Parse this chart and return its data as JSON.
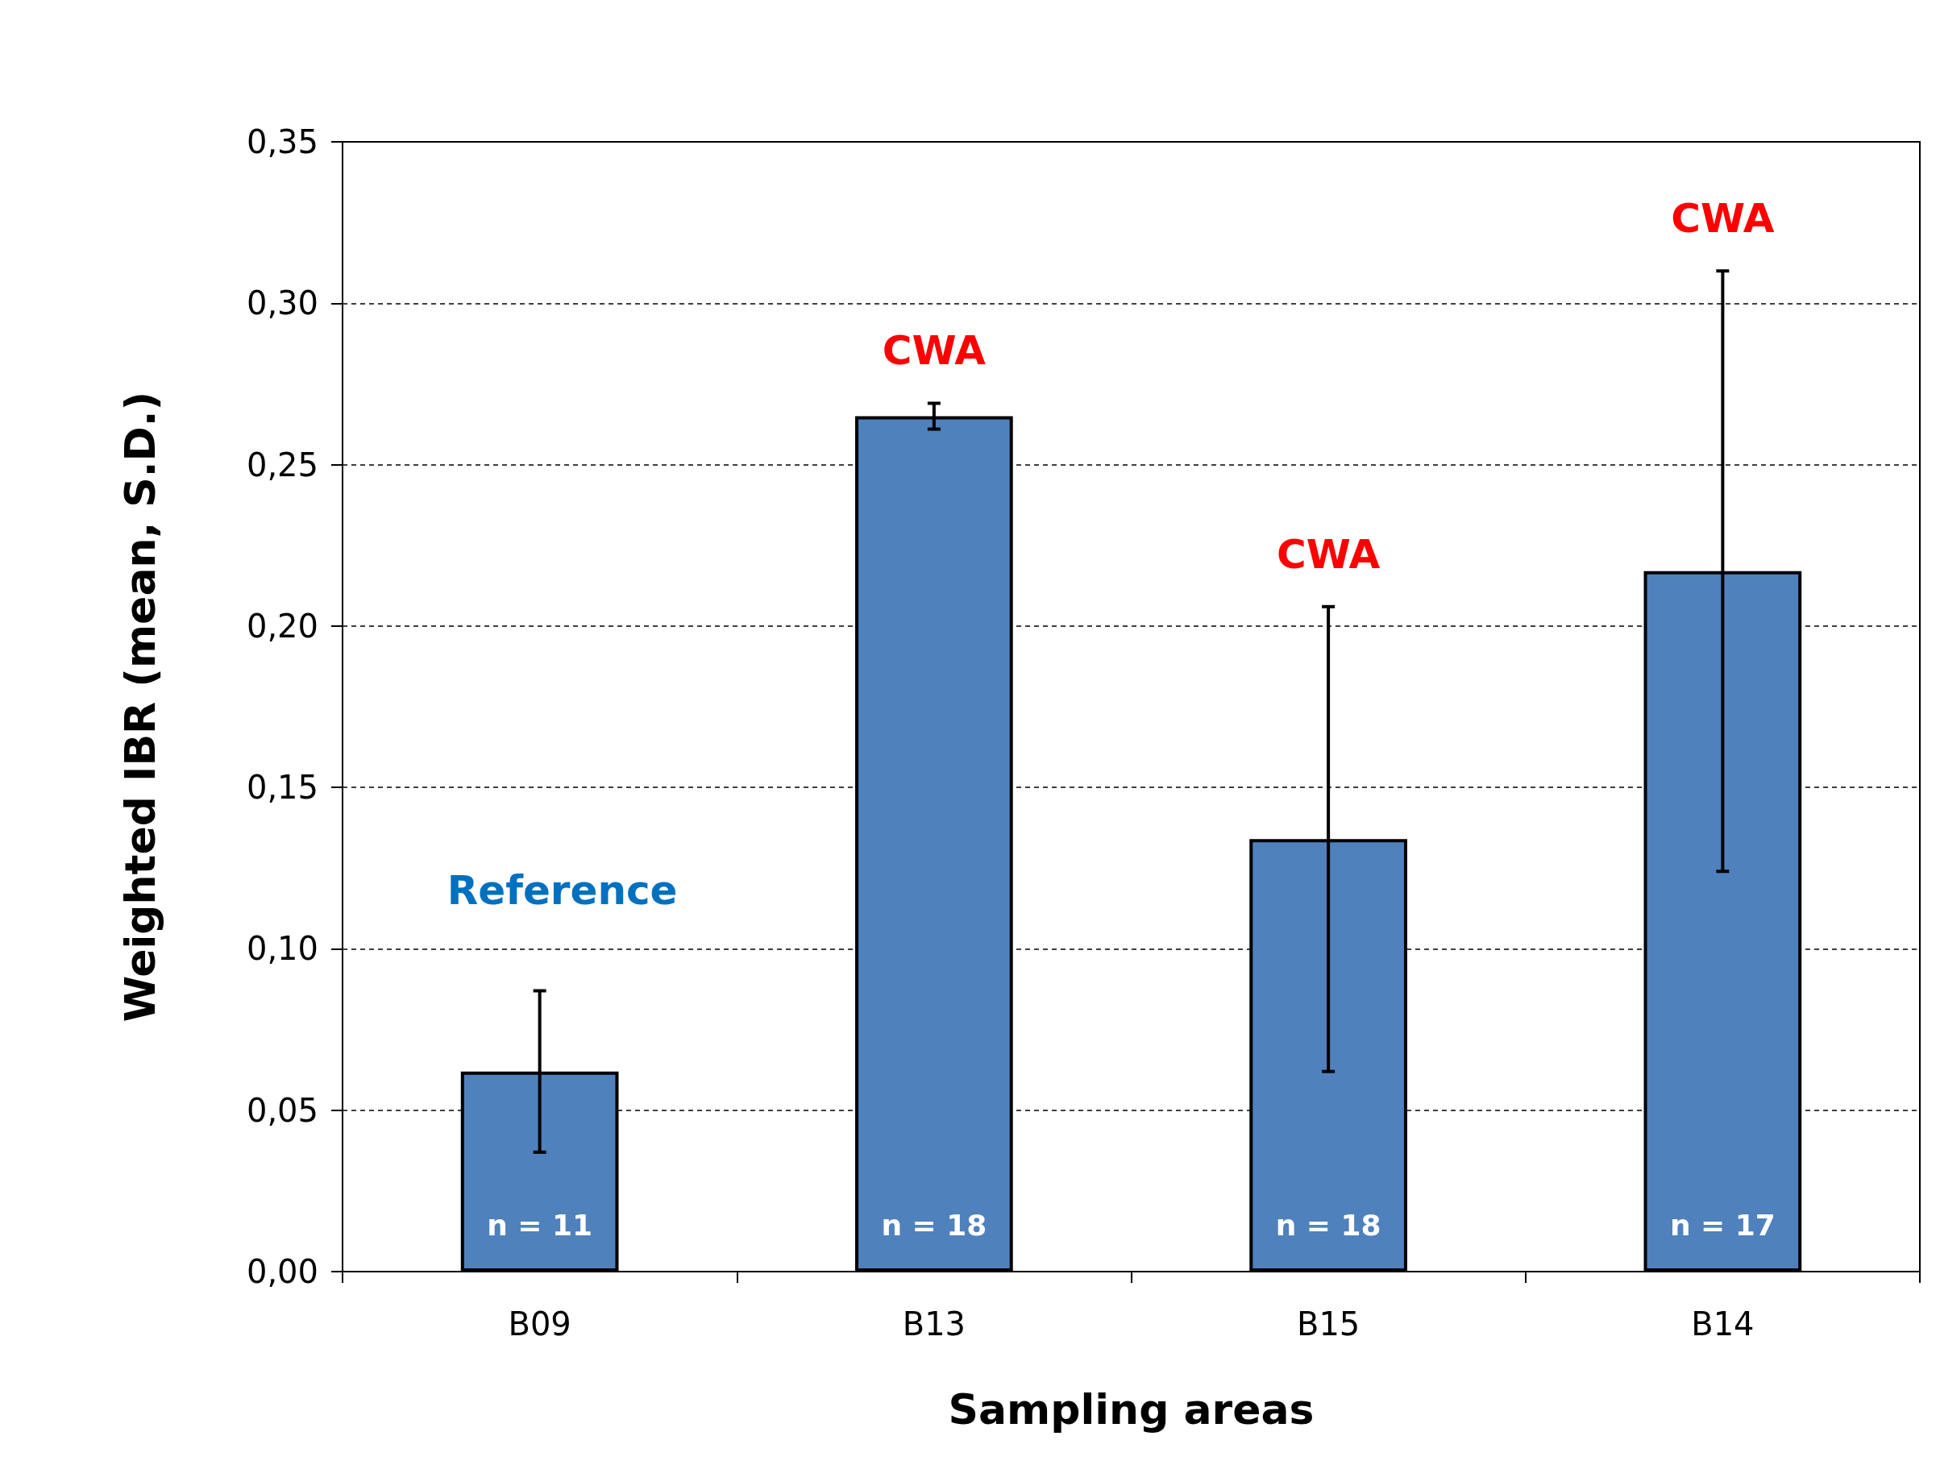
{
  "chart_data": {
    "type": "bar",
    "xlabel": "Sampling areas",
    "ylabel": "Weighted IBR (mean, S.D.)",
    "categories": [
      "B09",
      "B13",
      "B15",
      "B14"
    ],
    "values": [
      0.062,
      0.265,
      0.134,
      0.217
    ],
    "errors": [
      0.025,
      0.004,
      0.072,
      0.093
    ],
    "color": "#4f81bd",
    "ylim": [
      0,
      0.35
    ],
    "yticks": [
      {
        "value": 0,
        "label": "0,00"
      },
      {
        "value": 0.05,
        "label": "0,05"
      },
      {
        "value": 0.1,
        "label": "0,10"
      },
      {
        "value": 0.15,
        "label": "0,15"
      },
      {
        "value": 0.2,
        "label": "0,20"
      },
      {
        "value": 0.25,
        "label": "0,25"
      },
      {
        "value": 0.3,
        "label": "0,30"
      },
      {
        "value": 0.35,
        "label": "0,35"
      }
    ],
    "grid": "y",
    "annotations": [
      "Reference",
      "CWA",
      "CWA",
      "CWA",
      "n = 11",
      "n = 18",
      "n = 18",
      "n = 17"
    ]
  }
}
